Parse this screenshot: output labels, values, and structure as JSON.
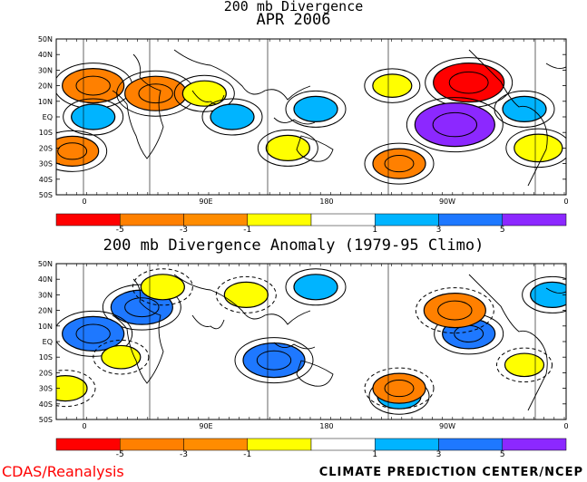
{
  "titles": {
    "top_line1": "200 mb Divergence",
    "top_line2": "APR 2006",
    "bottom": "200 mb Divergence Anomaly (1979-95 Climo)"
  },
  "lat_labels": [
    "50N",
    "40N",
    "30N",
    "20N",
    "10N",
    "EQ",
    "10S",
    "20S",
    "30S",
    "40S",
    "50S"
  ],
  "lon_labels": [
    "0",
    "90E",
    "180",
    "90W",
    "0"
  ],
  "colorbar": {
    "colors": [
      "#ff0000",
      "#ff8000",
      "#ff8c00",
      "#ffff00",
      "#ffffff",
      "#00b4ff",
      "#1e78ff",
      "#8c28ff"
    ],
    "tick_labels": [
      "-5",
      "-3",
      "-1",
      "1",
      "3",
      "5"
    ]
  },
  "footer": {
    "left": "CDAS/Reanalysis",
    "right": "CLIMATE PREDICTION CENTER/NCEP"
  },
  "chart_data": [
    {
      "type": "heatmap",
      "title": "200 mb Divergence APR 2006",
      "x_ticks": [
        "0",
        "90E",
        "180",
        "90W",
        "0"
      ],
      "y_ticks": [
        "50N",
        "40N",
        "30N",
        "20N",
        "10N",
        "EQ",
        "10S",
        "20S",
        "30S",
        "40S",
        "50S"
      ],
      "levels": [
        -5,
        -3,
        -1,
        1,
        3,
        5
      ],
      "blobs": [
        {
          "lon": 20,
          "lat": 20,
          "value": -4
        },
        {
          "lon": 65,
          "lat": 15,
          "value": -4
        },
        {
          "lon": 5,
          "lat": -22,
          "value": -3
        },
        {
          "lon": 100,
          "lat": 15,
          "value": -2
        },
        {
          "lon": 235,
          "lat": 20,
          "value": -1.5
        },
        {
          "lon": 290,
          "lat": 22,
          "value": -5
        },
        {
          "lon": 160,
          "lat": -20,
          "value": -2
        },
        {
          "lon": 240,
          "lat": -30,
          "value": -3
        },
        {
          "lon": 340,
          "lat": -20,
          "value": -2.5
        },
        {
          "lon": 280,
          "lat": -5,
          "value": 6
        },
        {
          "lon": 120,
          "lat": 0,
          "value": 2
        },
        {
          "lon": 20,
          "lat": 0,
          "value": 2
        },
        {
          "lon": 330,
          "lat": 5,
          "value": 2
        },
        {
          "lon": 180,
          "lat": 5,
          "value": 2
        }
      ]
    },
    {
      "type": "heatmap",
      "title": "200 mb Divergence Anomaly (1979-95 Climo)",
      "x_ticks": [
        "0",
        "90E",
        "180",
        "90W",
        "0"
      ],
      "y_ticks": [
        "50N",
        "40N",
        "30N",
        "20N",
        "10N",
        "EQ",
        "10S",
        "20S",
        "30S",
        "40S",
        "50S"
      ],
      "levels": [
        -5,
        -3,
        -1,
        1,
        3,
        5
      ],
      "blobs": [
        {
          "lon": 55,
          "lat": 22,
          "value": 4
        },
        {
          "lon": 20,
          "lat": 5,
          "value": 4
        },
        {
          "lon": 150,
          "lat": -12,
          "value": 4
        },
        {
          "lon": 290,
          "lat": 5,
          "value": 3
        },
        {
          "lon": 180,
          "lat": 35,
          "value": 2
        },
        {
          "lon": 240,
          "lat": -35,
          "value": 2
        },
        {
          "lon": 350,
          "lat": 30,
          "value": 2
        },
        {
          "lon": 280,
          "lat": 20,
          "value": -4
        },
        {
          "lon": 240,
          "lat": -30,
          "value": -3
        },
        {
          "lon": 0,
          "lat": -30,
          "value": -2
        },
        {
          "lon": 70,
          "lat": 35,
          "value": -2
        },
        {
          "lon": 130,
          "lat": 30,
          "value": -2
        },
        {
          "lon": 40,
          "lat": -10,
          "value": -1.5
        },
        {
          "lon": 330,
          "lat": -15,
          "value": -1.5
        }
      ]
    }
  ]
}
